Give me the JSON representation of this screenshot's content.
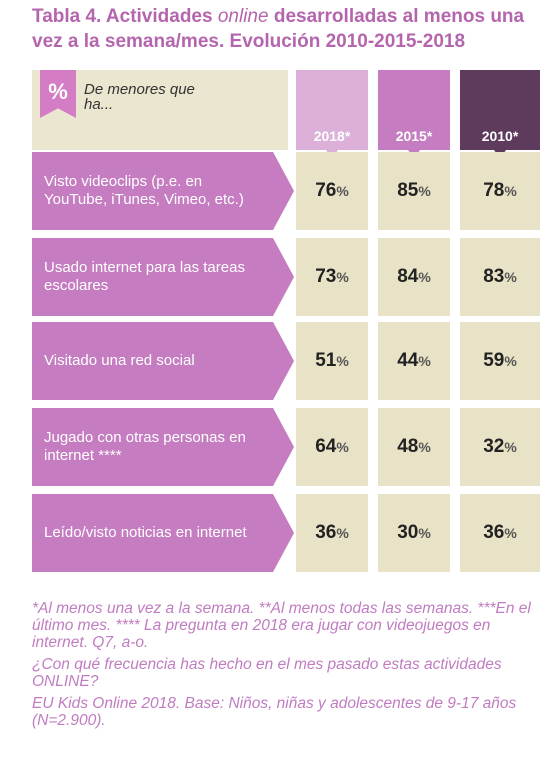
{
  "header": {
    "title_start": "Tabla 4. Actividades ",
    "title_em": "online",
    "title_end": " desarrolladas al menos una vez a la semana/mes. Evolución 2010-2015-2018"
  },
  "table": {
    "unit": "%",
    "corner": "De menores que ha...",
    "columns": [
      "2018*",
      "2015*",
      "2010*"
    ],
    "rows": [
      {
        "label": "Visto videoclips (p.e. en YouTube, iTunes, Vimeo, etc.)",
        "values": [
          76,
          85,
          78
        ]
      },
      {
        "label": "Usado internet para las tareas escolares",
        "values": [
          73,
          84,
          83
        ]
      },
      {
        "label": "Visitado una red social",
        "values": [
          51,
          44,
          59
        ]
      },
      {
        "label": "Jugado con otras personas en internet ****",
        "values": [
          64,
          48,
          32
        ]
      },
      {
        "label": "Leído/visto noticias en internet",
        "values": [
          36,
          30,
          36
        ]
      }
    ]
  },
  "footnotes": [
    "*Al menos una vez a la semana. **Al menos todas las semanas. ***En el último mes. **** La pregunta en 2018 era jugar con videojuegos en internet. Q7, a-o.",
    "¿Con qué frecuencia has hecho en el mes pasado estas actividades ONLINE?",
    "EU Kids Online 2018. Base: Niños, niñas y adolescentes de 9-17 años (N=2.900)."
  ]
}
